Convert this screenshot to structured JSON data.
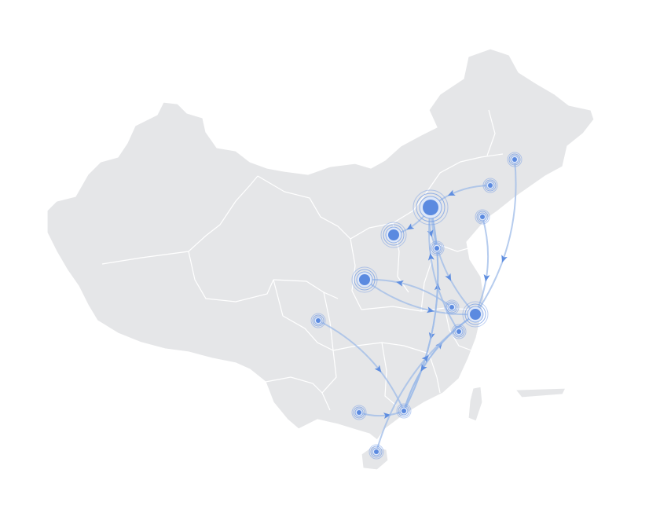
{
  "map": {
    "land_color": "#e5e6e8",
    "border_color": "#ffffff",
    "route_color": "#9dbbe8",
    "arrow_color": "#5f8ee0",
    "point_color": "#5b8ae0",
    "pulse_color": "#6c97e4"
  },
  "markers": [
    {
      "id": "beijing",
      "size": "large"
    },
    {
      "id": "hohhot",
      "size": "medium"
    },
    {
      "id": "xian",
      "size": "medium"
    },
    {
      "id": "shanghai",
      "size": "medium"
    },
    {
      "id": "changchun",
      "size": "small"
    },
    {
      "id": "shenyang",
      "size": "small"
    },
    {
      "id": "dalian",
      "size": "small"
    },
    {
      "id": "jinan",
      "size": "small"
    },
    {
      "id": "hefei",
      "size": "small"
    },
    {
      "id": "hangzhou",
      "size": "small"
    },
    {
      "id": "chengdu",
      "size": "small"
    },
    {
      "id": "guangzhou",
      "size": "small"
    },
    {
      "id": "nanning",
      "size": "small"
    },
    {
      "id": "haikou",
      "size": "small"
    }
  ],
  "routes": [
    {
      "from": "beijing",
      "to": "hohhot"
    },
    {
      "from": "beijing",
      "to": "shanghai"
    },
    {
      "from": "beijing",
      "to": "guangzhou"
    },
    {
      "from": "beijing",
      "to": "jinan"
    },
    {
      "from": "changchun",
      "to": "shanghai"
    },
    {
      "from": "shenyang",
      "to": "beijing"
    },
    {
      "from": "dalian",
      "to": "shanghai"
    },
    {
      "from": "xian",
      "to": "shanghai"
    },
    {
      "from": "chengdu",
      "to": "guangzhou"
    },
    {
      "from": "guangzhou",
      "to": "beijing"
    },
    {
      "from": "guangzhou",
      "to": "shanghai"
    },
    {
      "from": "nanning",
      "to": "guangzhou"
    },
    {
      "from": "haikou",
      "to": "shanghai"
    },
    {
      "from": "shanghai",
      "to": "guangzhou"
    },
    {
      "from": "hangzhou",
      "to": "beijing"
    },
    {
      "from": "hefei",
      "to": "xian"
    }
  ]
}
